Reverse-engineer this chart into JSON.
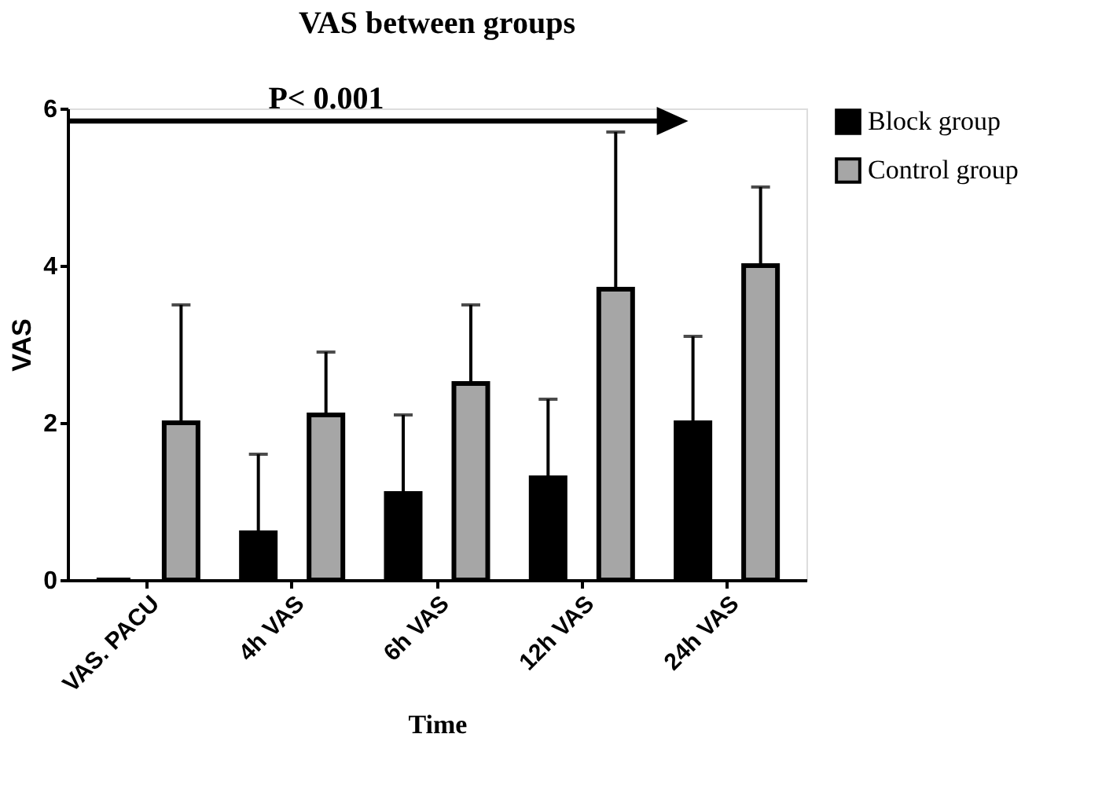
{
  "chart_data": {
    "type": "bar",
    "title": "VAS between groups",
    "xlabel": "Time",
    "ylabel": "VAS",
    "categories": [
      "VAS. PACU",
      "4h VAS",
      "6h VAS",
      "12h VAS",
      "24h VAS"
    ],
    "series": [
      {
        "name": "Block group",
        "color": "#000000",
        "values": [
          0,
          0.6,
          1.1,
          1.3,
          2.0
        ],
        "errors": [
          null,
          [
            0.6,
            1.6
          ],
          [
            1.1,
            2.1
          ],
          [
            1.3,
            2.3
          ],
          [
            2.0,
            3.1
          ]
        ]
      },
      {
        "name": "Control group",
        "color": "#a6a6a6",
        "values": [
          2.0,
          2.1,
          2.5,
          3.7,
          4.0
        ],
        "errors": [
          [
            2.0,
            3.5
          ],
          [
            2.1,
            2.9
          ],
          [
            2.5,
            3.5
          ],
          [
            3.7,
            5.7
          ],
          [
            4.0,
            5.0
          ]
        ]
      }
    ],
    "annotations": [
      "P< 0.001"
    ],
    "ylim": [
      0,
      6
    ],
    "yticks": [
      0,
      2,
      4,
      6
    ],
    "grid": false,
    "legend": "top right"
  }
}
